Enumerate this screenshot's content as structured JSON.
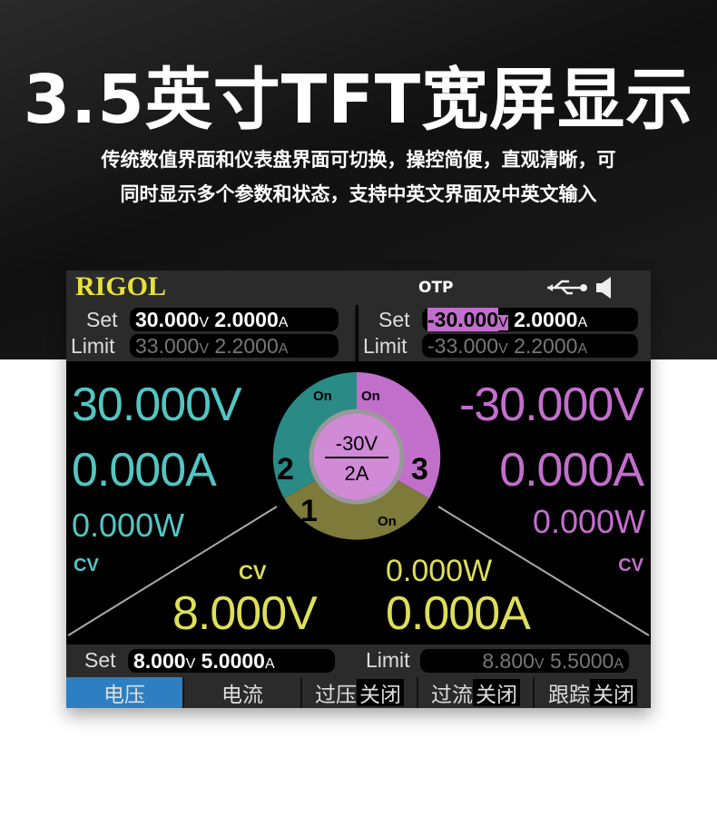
{
  "headline": "3.5英寸TFT宽屏显示",
  "subtitle": [
    "传统数值界面和仪表盘界面可切换，操控简便，直观清晰，可",
    "同时显示多个参数和状态，支持中英文界面及中英文输入"
  ],
  "screen": {
    "brand": "RIGOL",
    "status": "OTP",
    "icons": [
      "usb-icon",
      "speaker-icon"
    ],
    "ch2": {
      "set_label": "Set",
      "limit_label": "Limit",
      "set_v": "30.000",
      "set_a": "2.0000",
      "lim_v": "33.000",
      "lim_a": "2.2000",
      "voltage": "30.000V",
      "current": "0.000A",
      "power": "0.000W",
      "mode": "CV"
    },
    "ch3": {
      "set_label": "Set",
      "limit_label": "Limit",
      "set_v": "-30.000",
      "set_a": "2.0000",
      "lim_v": "-33.000",
      "lim_a": "2.2000",
      "voltage": "-30.000V",
      "current": "0.000A",
      "power": "0.000W",
      "mode": "CV"
    },
    "ch1": {
      "set_label": "Set",
      "limit_label": "Limit",
      "set_v": "8.000",
      "set_a": "5.0000",
      "lim_v": "8.800",
      "lim_a": "5.5000",
      "voltage": "8.000V",
      "current": "0.000A",
      "power": "0.000W",
      "mode": "CV"
    },
    "units": {
      "v": "V",
      "a": "A"
    },
    "dial": {
      "num1": "1",
      "num2": "2",
      "num3": "3",
      "on1": "On",
      "on2": "On",
      "on3": "On",
      "center_v": "-30V",
      "center_a": "2A"
    },
    "colors": {
      "ch1": "#dede5a",
      "ch2": "#52c6c3",
      "ch3": "#c26fcc",
      "selected_menu": "#2d7fc1"
    },
    "menu": [
      {
        "label": "电压",
        "selected": true
      },
      {
        "label": "电流"
      },
      {
        "label": "过压",
        "value": "关闭"
      },
      {
        "label": "过流",
        "value": "关闭"
      },
      {
        "label": "跟踪",
        "value": "关闭"
      }
    ]
  }
}
